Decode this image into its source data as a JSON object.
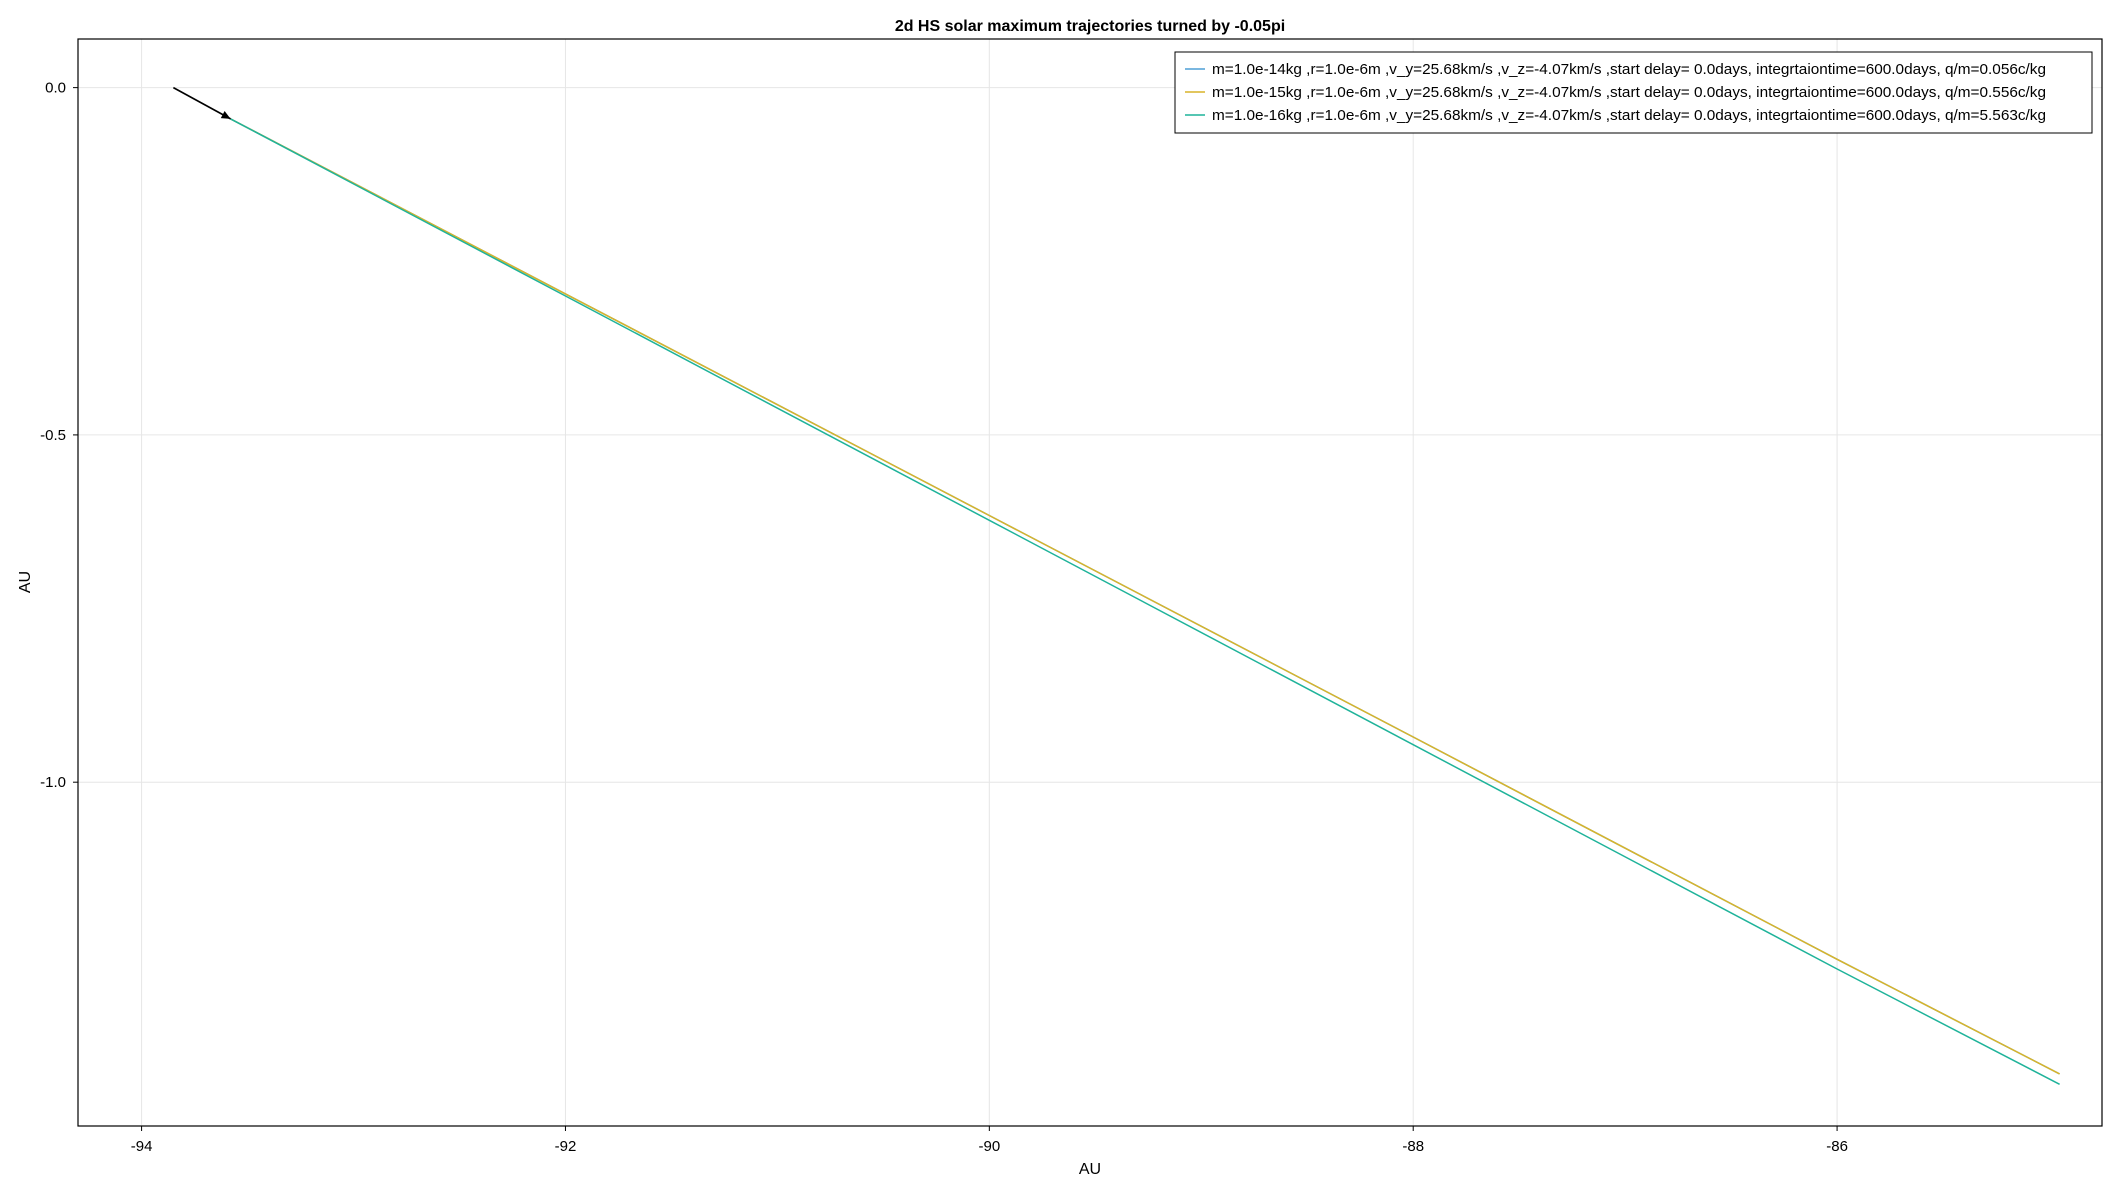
{
  "chart_data": {
    "type": "line",
    "title": "2d HS solar maximum trajectories turned by -0.05pi",
    "xlabel": "AU",
    "ylabel": "AU",
    "xlim": [
      -94.3,
      -84.75
    ],
    "ylim": [
      -1.495,
      0.07
    ],
    "xticks": [
      -94,
      -92,
      -90,
      -88,
      -86
    ],
    "xtick_labels": [
      "-94",
      "-92",
      "-90",
      "-88",
      "-86"
    ],
    "yticks": [
      0.0,
      -0.5,
      -1.0
    ],
    "ytick_labels": [
      "0.0",
      "-0.5",
      "-1.0"
    ],
    "grid": true,
    "legend_position": "top-right",
    "arrow": {
      "x": [
        -93.85,
        -93.58
      ],
      "y": [
        0.0,
        -0.045
      ],
      "color": "#000000"
    },
    "series": [
      {
        "name": "m=1.0e-14kg ,r=1.0e-6m ,v_y=25.68km/s ,v_z=-4.07km/s ,start delay= 0.0days, integrtaiontime=600.0days, q/m=0.056c/kg",
        "color": "#4e9fd6",
        "x": [
          -93.58,
          -92.0,
          -90.0,
          -88.0,
          -86.0,
          -84.95
        ],
        "y": [
          -0.045,
          -0.297,
          -0.616,
          -0.935,
          -1.255,
          -1.42
        ]
      },
      {
        "name": "m=1.0e-15kg ,r=1.0e-6m ,v_y=25.68km/s ,v_z=-4.07km/s ,start delay= 0.0days, integrtaiontime=600.0days, q/m=0.556c/kg",
        "color": "#d9b429",
        "x": [
          -93.58,
          -92.0,
          -90.0,
          -88.0,
          -86.0,
          -84.95
        ],
        "y": [
          -0.045,
          -0.297,
          -0.616,
          -0.935,
          -1.255,
          -1.42
        ]
      },
      {
        "name": "m=1.0e-16kg ,r=1.0e-6m ,v_y=25.68km/s ,v_z=-4.07km/s ,start delay= 0.0days, integrtaiontime=600.0days, q/m=5.563c/kg",
        "color": "#1fb39a",
        "x": [
          -93.58,
          -92.0,
          -90.0,
          -88.0,
          -86.0,
          -84.95
        ],
        "y": [
          -0.045,
          -0.3,
          -0.623,
          -0.946,
          -1.269,
          -1.435
        ]
      }
    ]
  }
}
